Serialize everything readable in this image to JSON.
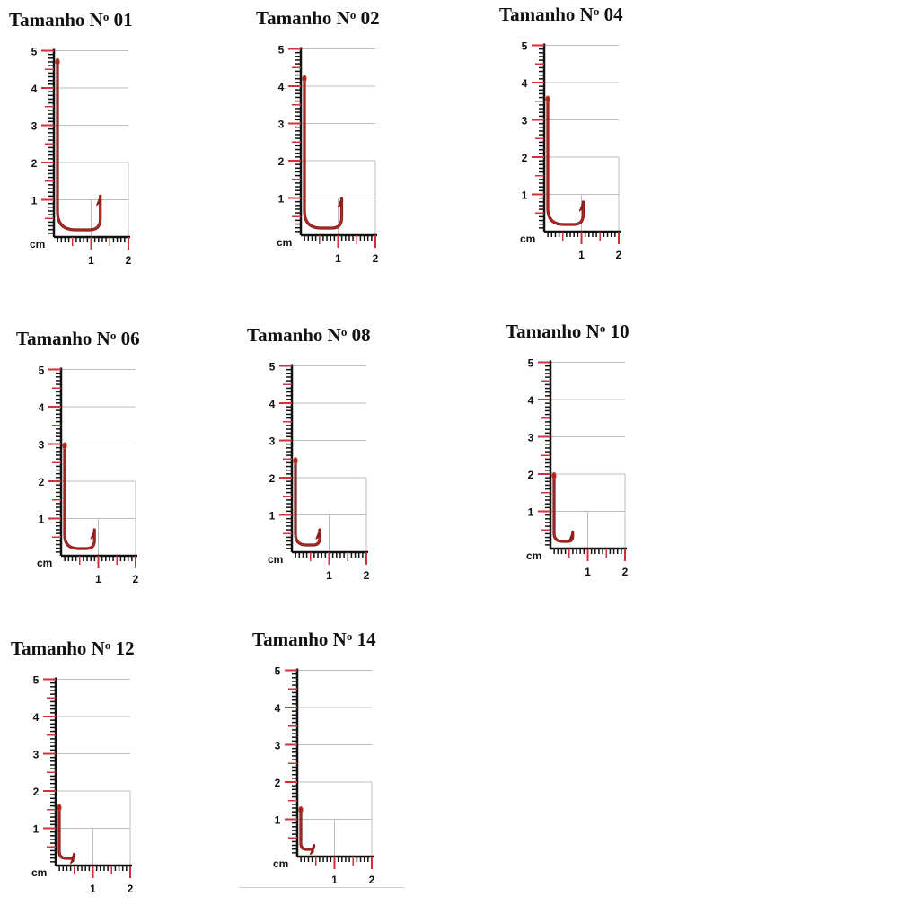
{
  "unit_label": "cm",
  "y_ticks": [
    "1",
    "2",
    "3",
    "4",
    "5"
  ],
  "x_ticks": [
    "1",
    "2"
  ],
  "title_prefix": "Tamanho N",
  "title_ordinal": "o",
  "colors": {
    "hook": "#8b1a1a",
    "hook_highlight": "#c0392b",
    "ruler_red": "#d0303a",
    "ruler_black": "#111111",
    "grid": "#bdbdbd",
    "text": "#111111"
  },
  "panels": [
    {
      "number": "01",
      "shank_height_cm": 4.75,
      "gape_cm": 1.15,
      "barb_height_cm": 1.1
    },
    {
      "number": "02",
      "shank_height_cm": 4.25,
      "gape_cm": 1.0,
      "barb_height_cm": 1.0
    },
    {
      "number": "04",
      "shank_height_cm": 3.6,
      "gape_cm": 0.95,
      "barb_height_cm": 0.8
    },
    {
      "number": "06",
      "shank_height_cm": 3.0,
      "gape_cm": 0.8,
      "barb_height_cm": 0.7
    },
    {
      "number": "08",
      "shank_height_cm": 2.5,
      "gape_cm": 0.65,
      "barb_height_cm": 0.6
    },
    {
      "number": "10",
      "shank_height_cm": 2.0,
      "gape_cm": 0.5,
      "barb_height_cm": 0.45
    },
    {
      "number": "12",
      "shank_height_cm": 1.6,
      "gape_cm": 0.4,
      "barb_height_cm": 0.3
    },
    {
      "number": "14",
      "shank_height_cm": 1.3,
      "gape_cm": 0.35,
      "barb_height_cm": 0.3
    }
  ]
}
